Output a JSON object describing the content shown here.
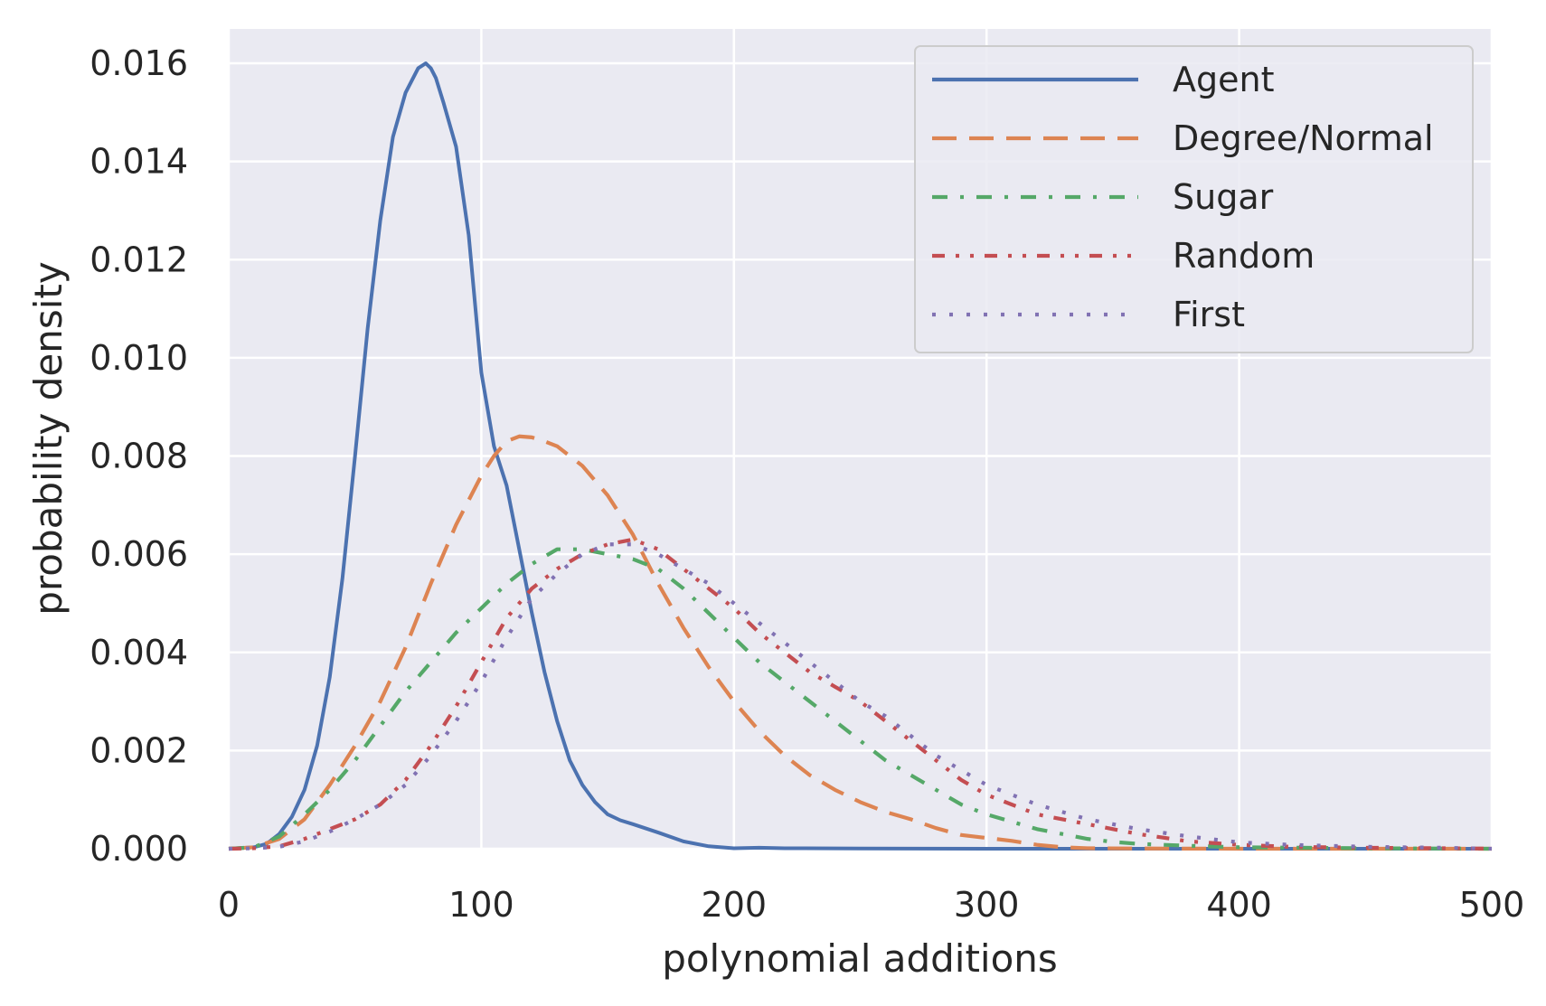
{
  "chart_data": {
    "type": "line",
    "title": "",
    "xlabel": "polynomial additions",
    "ylabel": "probability density",
    "xlim": [
      0,
      500
    ],
    "ylim": [
      0,
      0.0167
    ],
    "xticks": [
      0,
      100,
      200,
      300,
      400,
      500
    ],
    "xtick_labels": [
      "0",
      "100",
      "200",
      "300",
      "400",
      "500"
    ],
    "yticks": [
      0,
      0.002,
      0.004,
      0.006,
      0.008,
      0.01,
      0.012,
      0.014,
      0.016
    ],
    "ytick_labels": [
      "0.000",
      "0.002",
      "0.004",
      "0.006",
      "0.008",
      "0.010",
      "0.012",
      "0.014",
      "0.016"
    ],
    "grid": true,
    "legend_position": "top-right",
    "colors": {
      "plot_background": "#eaeaf2",
      "grid": "#ffffff",
      "legend_background": "#eaeaf2",
      "legend_border": "#cccccc"
    },
    "series": [
      {
        "name": "Agent",
        "color": "#4c72b0",
        "style": "solid",
        "x": [
          0,
          10,
          15,
          20,
          25,
          30,
          35,
          40,
          45,
          50,
          55,
          60,
          65,
          70,
          75,
          78,
          80,
          82,
          85,
          90,
          95,
          100,
          103,
          105,
          110,
          115,
          120,
          125,
          130,
          135,
          140,
          145,
          150,
          155,
          160,
          170,
          180,
          190,
          200,
          210,
          220,
          250,
          300,
          500
        ],
        "y": [
          0,
          3e-05,
          0.0001,
          0.0003,
          0.00065,
          0.0012,
          0.0021,
          0.0035,
          0.0055,
          0.008,
          0.0106,
          0.0128,
          0.0145,
          0.0154,
          0.0159,
          0.016,
          0.0159,
          0.0157,
          0.0152,
          0.0143,
          0.0125,
          0.0097,
          0.0088,
          0.0082,
          0.0074,
          0.0061,
          0.0048,
          0.0036,
          0.0026,
          0.0018,
          0.0013,
          0.00095,
          0.0007,
          0.00058,
          0.0005,
          0.00033,
          0.00015,
          5e-05,
          1e-05,
          2e-05,
          1e-05,
          5e-06,
          0,
          0
        ]
      },
      {
        "name": "Degree/Normal",
        "color": "#dd8452",
        "style": "dashed",
        "x": [
          0,
          10,
          20,
          30,
          40,
          50,
          60,
          70,
          80,
          90,
          100,
          105,
          110,
          115,
          120,
          125,
          130,
          140,
          150,
          160,
          170,
          180,
          190,
          200,
          210,
          220,
          230,
          240,
          250,
          260,
          270,
          280,
          290,
          300,
          310,
          320,
          330,
          340,
          360,
          400,
          500
        ],
        "y": [
          0,
          3e-05,
          0.0002,
          0.0006,
          0.0013,
          0.0021,
          0.003,
          0.0041,
          0.0054,
          0.0066,
          0.0076,
          0.008,
          0.0083,
          0.0084,
          0.00838,
          0.0083,
          0.0082,
          0.0078,
          0.0072,
          0.0064,
          0.0054,
          0.0045,
          0.0037,
          0.003,
          0.0024,
          0.0019,
          0.0015,
          0.0012,
          0.00095,
          0.00075,
          0.0006,
          0.00042,
          0.00028,
          0.00022,
          0.00016,
          8e-05,
          3e-05,
          1e-05,
          5e-06,
          0,
          0
        ]
      },
      {
        "name": "Sugar",
        "color": "#55a868",
        "style": "dashdot",
        "x": [
          0,
          10,
          20,
          30,
          40,
          50,
          60,
          70,
          80,
          90,
          100,
          110,
          120,
          130,
          140,
          150,
          160,
          170,
          180,
          190,
          200,
          210,
          220,
          230,
          240,
          250,
          260,
          270,
          280,
          290,
          300,
          310,
          320,
          330,
          340,
          350,
          360,
          380,
          400,
          450,
          500
        ],
        "y": [
          0,
          3e-05,
          0.00025,
          0.0007,
          0.0012,
          0.0018,
          0.0025,
          0.0032,
          0.0038,
          0.0044,
          0.0049,
          0.0054,
          0.0058,
          0.0061,
          0.0061,
          0.006,
          0.0059,
          0.0057,
          0.0053,
          0.0048,
          0.0043,
          0.0038,
          0.0034,
          0.003,
          0.0026,
          0.0022,
          0.0018,
          0.0015,
          0.0012,
          0.0009,
          0.0007,
          0.00055,
          0.0004,
          0.0003,
          0.0002,
          0.00014,
          0.0001,
          6e-05,
          3e-05,
          1e-05,
          0
        ]
      },
      {
        "name": "Random",
        "color": "#c44e52",
        "style": "loosely-dashdotdot",
        "x": [
          0,
          10,
          20,
          30,
          40,
          50,
          60,
          70,
          80,
          90,
          100,
          110,
          120,
          130,
          140,
          150,
          160,
          170,
          180,
          190,
          200,
          210,
          220,
          230,
          240,
          250,
          260,
          270,
          280,
          290,
          300,
          310,
          320,
          340,
          360,
          380,
          400,
          420,
          450,
          480,
          500
        ],
        "y": [
          0,
          1e-05,
          5e-05,
          0.0002,
          0.0004,
          0.0006,
          0.0009,
          0.0014,
          0.0021,
          0.0029,
          0.0038,
          0.0047,
          0.0053,
          0.0057,
          0.006,
          0.0062,
          0.0063,
          0.0061,
          0.0057,
          0.0053,
          0.0049,
          0.0044,
          0.004,
          0.0036,
          0.0033,
          0.003,
          0.0026,
          0.0022,
          0.0018,
          0.0014,
          0.0011,
          0.0009,
          0.0007,
          0.0005,
          0.0003,
          0.00015,
          8e-05,
          4e-05,
          2e-05,
          1e-05,
          0
        ]
      },
      {
        "name": "First",
        "color": "#8172b3",
        "style": "dotted",
        "x": [
          0,
          10,
          20,
          30,
          40,
          50,
          60,
          70,
          80,
          90,
          100,
          110,
          120,
          130,
          140,
          150,
          160,
          170,
          180,
          190,
          200,
          210,
          220,
          230,
          240,
          250,
          260,
          270,
          280,
          290,
          300,
          310,
          320,
          340,
          360,
          380,
          400,
          420,
          450,
          480,
          500
        ],
        "y": [
          0,
          1e-05,
          4e-05,
          0.00015,
          0.00035,
          0.0006,
          0.0009,
          0.0013,
          0.0019,
          0.0026,
          0.0034,
          0.0043,
          0.0051,
          0.0056,
          0.006,
          0.0062,
          0.0062,
          0.006,
          0.0057,
          0.0054,
          0.005,
          0.0046,
          0.0042,
          0.0038,
          0.0034,
          0.003,
          0.0027,
          0.0023,
          0.0019,
          0.0016,
          0.0013,
          0.0011,
          0.0009,
          0.0006,
          0.0004,
          0.00025,
          0.00013,
          8e-05,
          4e-05,
          2e-05,
          0
        ]
      }
    ]
  }
}
